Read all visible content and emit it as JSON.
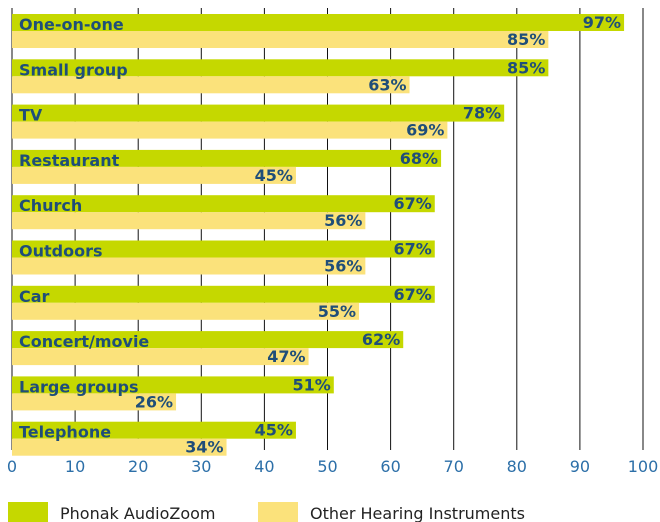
{
  "chart_data": {
    "type": "bar",
    "orientation": "horizontal",
    "categories": [
      "One-on-one",
      "Small group",
      "TV",
      "Restaurant",
      "Church",
      "Outdoors",
      "Car",
      "Concert/movie",
      "Large groups",
      "Telephone"
    ],
    "series": [
      {
        "name": "Phonak AudioZoom",
        "values": [
          97,
          85,
          78,
          68,
          67,
          67,
          67,
          62,
          51,
          45
        ],
        "labels": [
          "97%",
          "85%",
          "78%",
          "68%",
          "67%",
          "67%",
          "67%",
          "62%",
          "51%",
          "45%"
        ],
        "color": "#c5d800"
      },
      {
        "name": "Other Hearing Instruments",
        "values": [
          85,
          63,
          69,
          45,
          56,
          56,
          55,
          47,
          26,
          34
        ],
        "labels": [
          "85%",
          "63%",
          "69%",
          "45%",
          "56%",
          "56%",
          "55%",
          "47%",
          "26%",
          "34%"
        ],
        "color": "#fbe27b"
      }
    ],
    "x_ticks": [
      "0",
      "10",
      "20",
      "30",
      "40",
      "50",
      "60",
      "70",
      "80",
      "90",
      "100"
    ],
    "xlim": [
      0,
      100
    ],
    "grid": "vertical",
    "legend_position": "bottom",
    "title": "",
    "xlabel": "",
    "ylabel": ""
  },
  "colors": {
    "series_1": "#c5d800",
    "series_2": "#fbe27b",
    "label_text": "#1f4e79",
    "tick_text": "#2c6fa8",
    "grid": "#111111"
  }
}
